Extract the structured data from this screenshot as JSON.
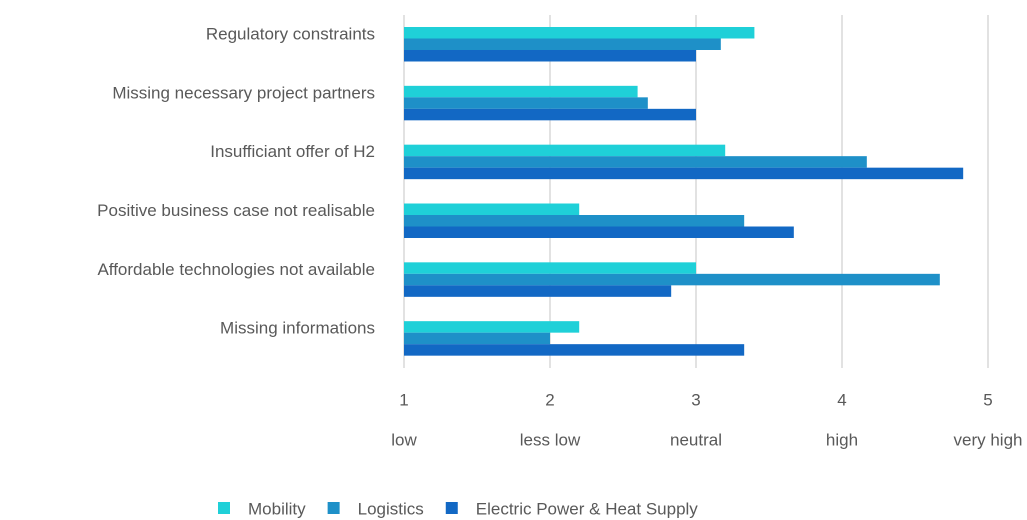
{
  "chart_data": {
    "type": "hbar",
    "categories": [
      "Regulatory constraints",
      "Missing necessary project partners",
      "Insufficiant offer of H2",
      "Positive business case not realisable",
      "Affordable technologies not available",
      "Missing informations"
    ],
    "series": [
      {
        "name": "Mobility",
        "color": "#1fd0d8",
        "values": [
          3.4,
          2.6,
          3.2,
          2.2,
          3.0,
          2.2
        ]
      },
      {
        "name": "Logistics",
        "color": "#1e90c8",
        "values": [
          3.17,
          2.67,
          4.17,
          3.33,
          4.67,
          2.0
        ]
      },
      {
        "name": "Electric Power & Heat Supply",
        "color": "#1268c4",
        "values": [
          3.0,
          3.0,
          4.83,
          3.67,
          2.83,
          3.33
        ]
      }
    ],
    "xlim": [
      1,
      5
    ],
    "xticks": [
      1,
      2,
      3,
      4,
      5
    ],
    "scale_labels": [
      "low",
      "less low",
      "neutral",
      "high",
      "very high"
    ],
    "grid": true,
    "legend": "bottom"
  }
}
